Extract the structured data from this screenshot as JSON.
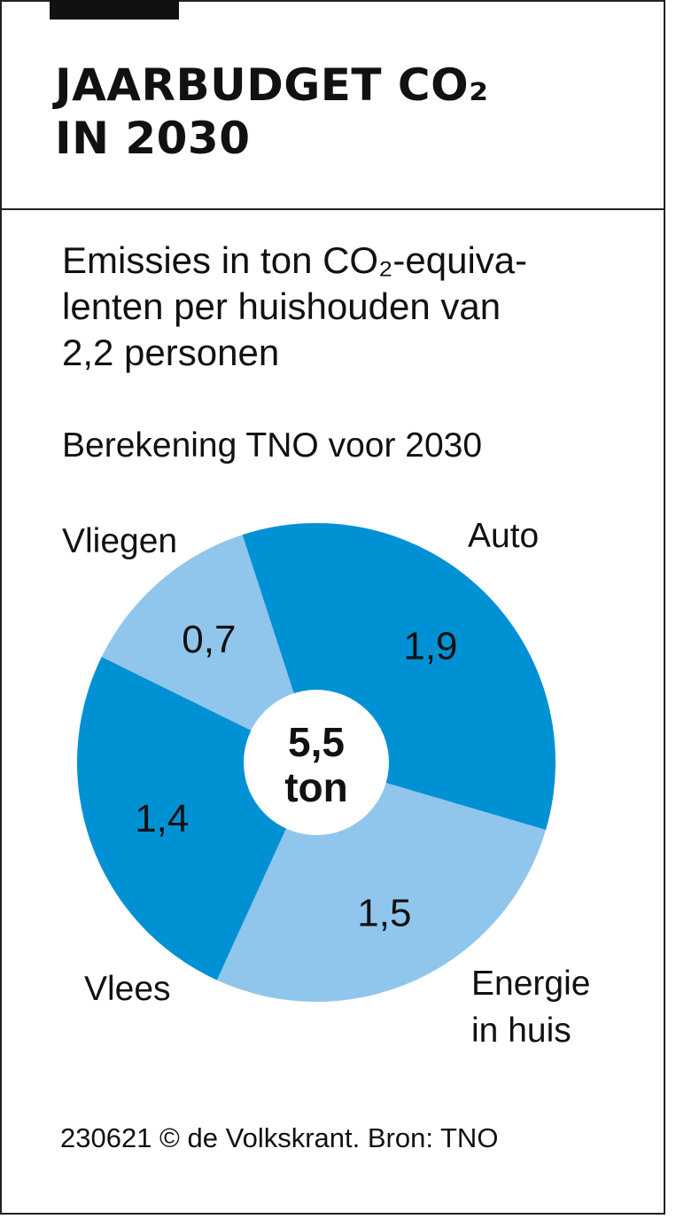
{
  "header": {
    "title": "JAARBUDGET CO₂\nIN 2030"
  },
  "subtitle": "Emissies in ton CO₂-equiva-\nlenten per huishouden van\n2,2 personen",
  "note": "Berekening TNO voor 2030",
  "footer": "230621 © de Volkskrant. Bron: TNO",
  "chart_data": {
    "type": "pie",
    "title": "",
    "center_label": [
      "5,5",
      "ton"
    ],
    "slices": [
      {
        "name": "Auto",
        "value": 1.9,
        "value_label": "1,9",
        "color": "#0091d5"
      },
      {
        "name": "Energie\nin huis",
        "value": 1.5,
        "value_label": "1,5",
        "color": "#90c6ec"
      },
      {
        "name": "Vlees",
        "value": 1.4,
        "value_label": "1,4",
        "color": "#0091d5"
      },
      {
        "name": "Vliegen",
        "value": 0.7,
        "value_label": "0,7",
        "color": "#90c6ec"
      }
    ],
    "colors": {
      "dark_blue": "#0091d5",
      "light_blue": "#90c6ec"
    }
  }
}
